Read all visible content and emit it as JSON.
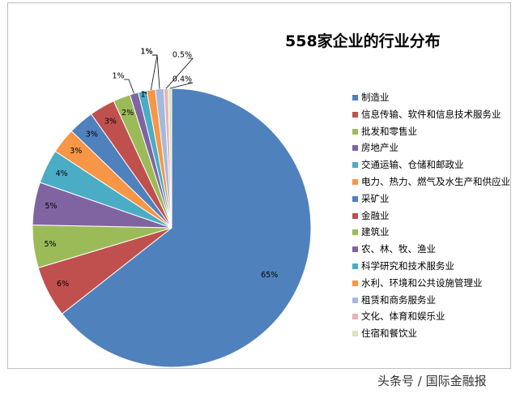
{
  "chart_data": {
    "type": "pie",
    "title": "558家企业的行业分布",
    "categories": [
      "制造业",
      "信息传输、软件和信息技术服务业",
      "批发和零售业",
      "房地产业",
      "交通运输、仓储和邮政业",
      "电力、热力、燃气及水生产和供应业",
      "采矿业",
      "金融业",
      "建筑业",
      "农、林、牧、渔业",
      "科学研究和技术服务业",
      "水利、环境和公共设施管理业",
      "租赁和商务服务业",
      "文化、体育和娱乐业",
      "住宿和餐饮业"
    ],
    "values": [
      65,
      6,
      5,
      5,
      4,
      3,
      3,
      3,
      2,
      1,
      1,
      1,
      1,
      0.5,
      0.4
    ],
    "data_labels": [
      "65%",
      "6%",
      "5%",
      "5%",
      "4%",
      "3%",
      "3%",
      "3%",
      "2%",
      "1%",
      "1%",
      "1%",
      "1%",
      "0.5%",
      "0.4%"
    ],
    "colors": [
      "#4f81bd",
      "#c0504d",
      "#9bbb59",
      "#8064a2",
      "#4bacc6",
      "#f79646",
      "#4f81bd",
      "#c0504d",
      "#9bbb59",
      "#8064a2",
      "#4bacc6",
      "#f79646",
      "#a5b9dd",
      "#e6b3b2",
      "#d7e4bd"
    ],
    "legend_position": "right",
    "start_angle": "12 o'clock, clockwise"
  },
  "watermark": "头条号 / 国际金融报"
}
